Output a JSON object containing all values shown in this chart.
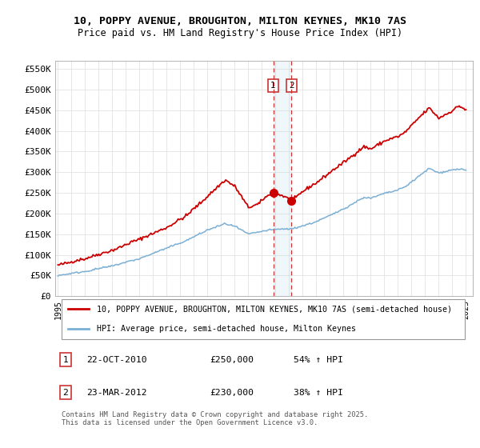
{
  "title_line1": "10, POPPY AVENUE, BROUGHTON, MILTON KEYNES, MK10 7AS",
  "title_line2": "Price paid vs. HM Land Registry's House Price Index (HPI)",
  "background_color": "#ffffff",
  "plot_bg_color": "#ffffff",
  "grid_color": "#dddddd",
  "red_line_color": "#cc0000",
  "blue_line_color": "#7bafd4",
  "marker1_date": "22-OCT-2010",
  "marker1_price": "£250,000",
  "marker1_hpi": "54% ↑ HPI",
  "marker2_date": "23-MAR-2012",
  "marker2_price": "£230,000",
  "marker2_hpi": "38% ↑ HPI",
  "legend_line1": "10, POPPY AVENUE, BROUGHTON, MILTON KEYNES, MK10 7AS (semi-detached house)",
  "legend_line2": "HPI: Average price, semi-detached house, Milton Keynes",
  "footer": "Contains HM Land Registry data © Crown copyright and database right 2025.\nThis data is licensed under the Open Government Licence v3.0.",
  "yticks": [
    0,
    50000,
    100000,
    150000,
    200000,
    250000,
    300000,
    350000,
    400000,
    450000,
    500000,
    550000
  ],
  "ytick_labels": [
    "£0",
    "£50K",
    "£100K",
    "£150K",
    "£200K",
    "£250K",
    "£300K",
    "£350K",
    "£400K",
    "£450K",
    "£500K",
    "£550K"
  ],
  "xstart": 1995,
  "xend": 2026,
  "m1_year": 2010.8,
  "m2_year": 2012.2,
  "m1_price_val": 250000,
  "m2_price_val": 230000
}
